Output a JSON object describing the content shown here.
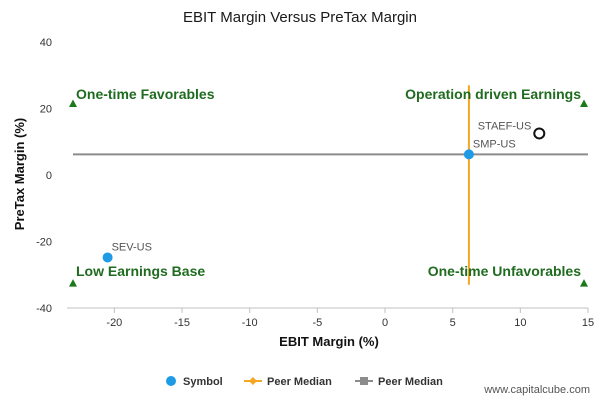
{
  "chart_data": {
    "type": "scatter",
    "title": "EBIT Margin Versus PreTax Margin",
    "xlabel": "EBIT Margin (%)",
    "ylabel": "PreTax Margin (%)",
    "xlim": [
      -23.5,
      15
    ],
    "ylim": [
      -40,
      40
    ],
    "xticks": [
      -20,
      -15,
      -10,
      -5,
      0,
      5,
      10,
      15
    ],
    "yticks": [
      40,
      20,
      0,
      -20,
      -40
    ],
    "grid": false,
    "legend_position": "bottom",
    "points": [
      {
        "label": "STAEF-US",
        "x": 11.4,
        "y": 12.5,
        "style": "hollow"
      },
      {
        "label": "SMP-US",
        "x": 6.2,
        "y": 6.2,
        "style": "filled"
      },
      {
        "label": "SEV-US",
        "x": -20.5,
        "y": -24.8,
        "style": "filled"
      }
    ],
    "peer_median_x": 6.2,
    "peer_median_y": 6.2,
    "quadrant_labels": {
      "top_left": "One-time Favorables",
      "top_right": "Operation driven Earnings",
      "bottom_left": "Low Earnings Base",
      "bottom_right": "One-time Unfavorables"
    },
    "legend": [
      {
        "label": "Symbol",
        "marker": "circle",
        "color": "#1f9be6"
      },
      {
        "label": "Peer Median",
        "marker": "diamond-line",
        "color": "#f5a623"
      },
      {
        "label": "Peer Median",
        "marker": "square-line",
        "color": "#8c8c8c"
      }
    ],
    "colors": {
      "symbol": "#1f9be6",
      "peer_median_vertical": "#f5a623",
      "peer_median_horizontal": "#8c8c8c",
      "quadrant_text": "#1f6b1f",
      "quadrant_marker": "#1a7a1a"
    }
  },
  "watermark": "www.capitalcube.com"
}
